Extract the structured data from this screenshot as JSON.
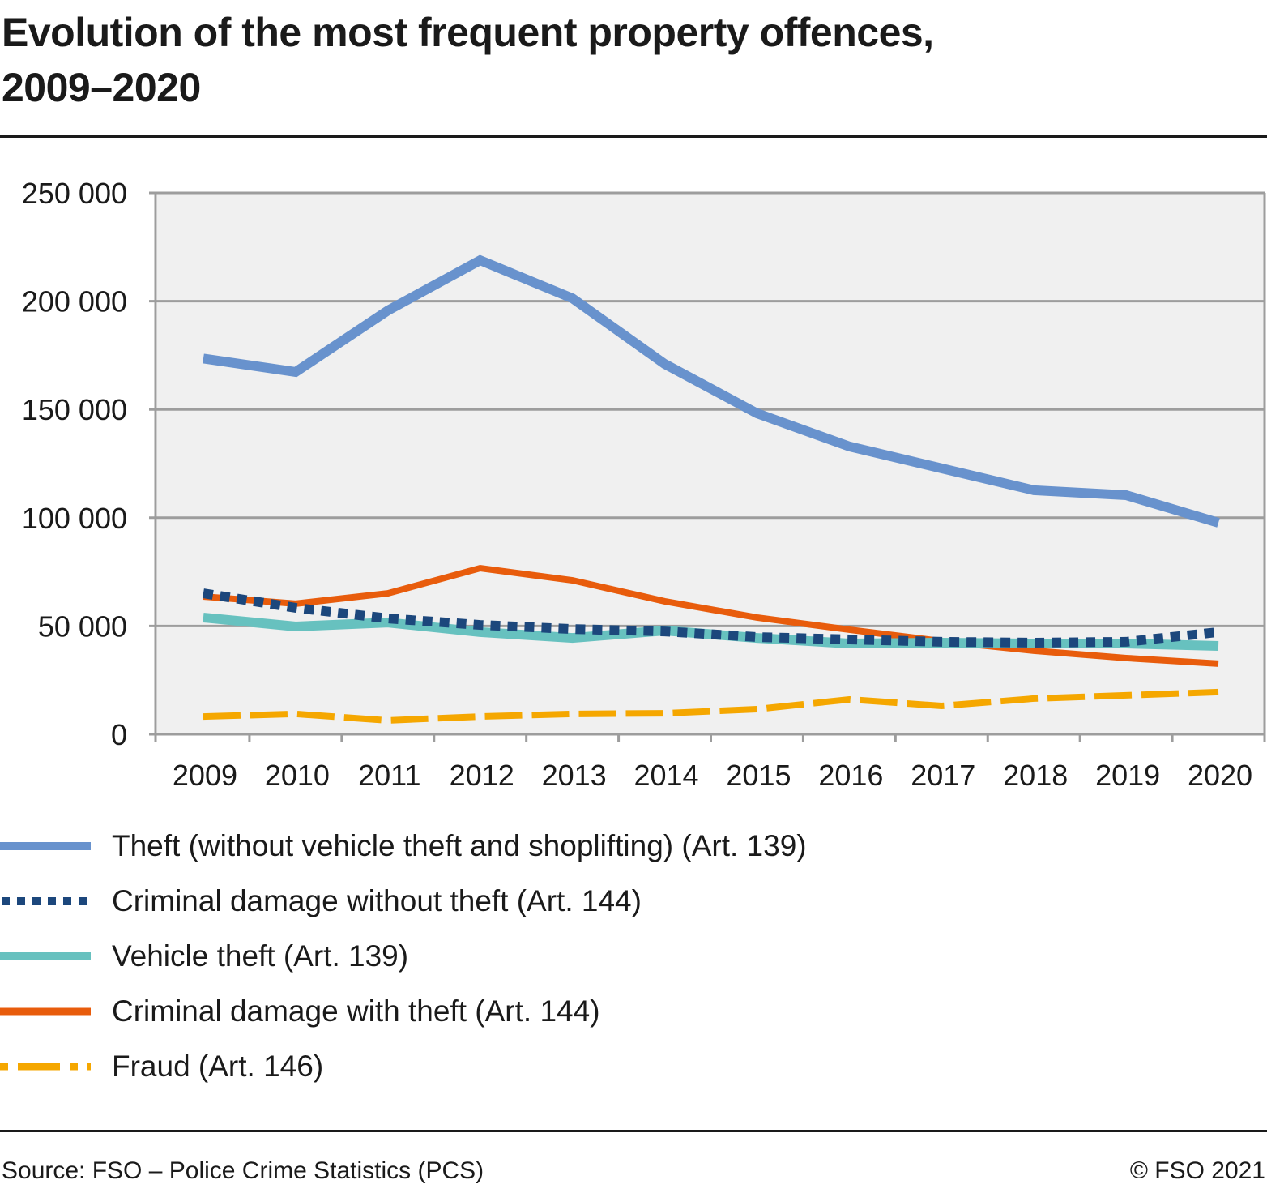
{
  "header": {
    "title_line1": "Evolution of the most frequent property offences,",
    "title_line2": "2009–2020"
  },
  "footer": {
    "source": "Source: FSO – Police Crime Statistics (PCS)",
    "copyright": "© FSO 2021"
  },
  "chart_data": {
    "type": "line",
    "title": "Evolution of the most frequent property offences, 2009–2020",
    "xlabel": "",
    "ylabel": "",
    "x": [
      "2009",
      "2010",
      "2011",
      "2012",
      "2013",
      "2014",
      "2015",
      "2016",
      "2017",
      "2018",
      "2019",
      "2020"
    ],
    "ylim": [
      0,
      250000
    ],
    "yticks": [
      0,
      50000,
      100000,
      150000,
      200000,
      250000
    ],
    "ytick_labels": [
      "0",
      "50 000",
      "100 000",
      "150 000",
      "200 000",
      "250 000"
    ],
    "grid": true,
    "legend_position": "bottom",
    "series": [
      {
        "name": "Theft (without vehicle theft and shoplifting) (Art. 139)",
        "color": "#6892cd",
        "style": "solid-thick",
        "values": [
          173500,
          167300,
          195700,
          218900,
          201300,
          171000,
          148200,
          132900,
          122800,
          112700,
          110400,
          97700
        ]
      },
      {
        "name": "Criminal damage without theft (Art. 144)",
        "color": "#1c477c",
        "style": "dotted",
        "values": [
          65100,
          58400,
          53500,
          50500,
          48600,
          47500,
          44900,
          43800,
          42700,
          42300,
          42700,
          47200
        ]
      },
      {
        "name": "Vehicle theft (Art. 139)",
        "color": "#67c1bf",
        "style": "solid-thick",
        "values": [
          53900,
          49800,
          51600,
          47200,
          44500,
          47900,
          44500,
          41900,
          42300,
          41900,
          41900,
          40800
        ]
      },
      {
        "name": "Criminal damage with theft (Art. 144)",
        "color": "#e85c0c",
        "style": "solid",
        "values": [
          63600,
          60300,
          65100,
          76700,
          71100,
          61400,
          53900,
          48300,
          43000,
          38600,
          35200,
          32600
        ]
      },
      {
        "name": "Fraud (Art. 146)",
        "color": "#f5a700",
        "style": "dashed",
        "values": [
          8200,
          9400,
          6400,
          8200,
          9400,
          9700,
          11600,
          16100,
          13100,
          16500,
          18000,
          19500
        ]
      }
    ]
  }
}
